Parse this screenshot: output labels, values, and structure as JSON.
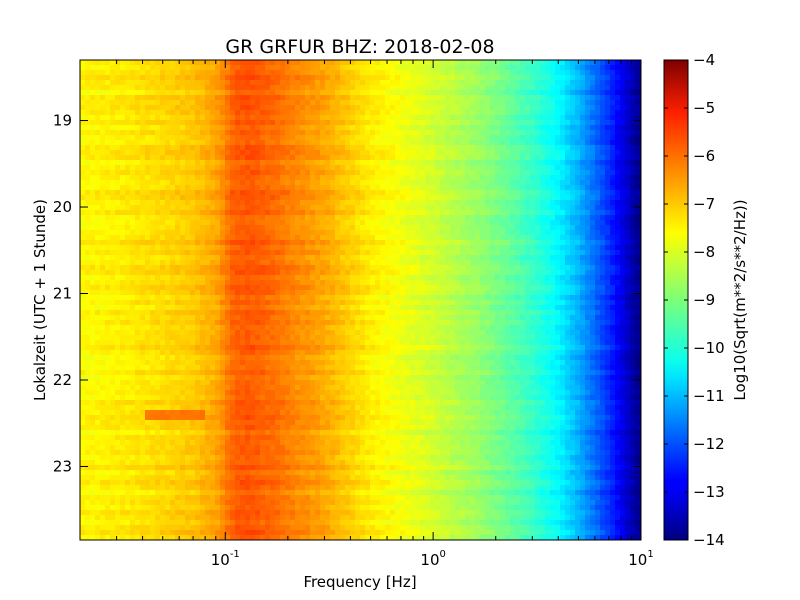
{
  "chart_data": {
    "type": "heatmap",
    "title": "GR GRFUR BHZ: 2018-02-08",
    "xlabel": "Frequency [Hz]",
    "ylabel": "Lokalzeit (UTC + 1 Stunde)",
    "x_scale": "log",
    "xlim": [
      0.02,
      10
    ],
    "ylim": [
      18.3,
      23.85
    ],
    "y_inverted": true,
    "x_ticks": [
      {
        "value": 0.1,
        "base": "10",
        "exponent": "-1"
      },
      {
        "value": 1,
        "base": "10",
        "exponent": "0"
      },
      {
        "value": 10,
        "base": "10",
        "exponent": "1"
      }
    ],
    "y_ticks": [
      {
        "value": 19,
        "label": "19"
      },
      {
        "value": 20,
        "label": "20"
      },
      {
        "value": 21,
        "label": "21"
      },
      {
        "value": 22,
        "label": "22"
      },
      {
        "value": 23,
        "label": "23"
      }
    ],
    "colorbar": {
      "label": "Log10(Sqrt(m**2/s**2/Hz))",
      "min": -14,
      "max": -4,
      "colormap": "jet",
      "ticks": [
        {
          "value": -4,
          "label": "−4"
        },
        {
          "value": -5,
          "label": "−5"
        },
        {
          "value": -6,
          "label": "−6"
        },
        {
          "value": -7,
          "label": "−7"
        },
        {
          "value": -8,
          "label": "−8"
        },
        {
          "value": -9,
          "label": "−9"
        },
        {
          "value": -10,
          "label": "−10"
        },
        {
          "value": -11,
          "label": "−11"
        },
        {
          "value": -12,
          "label": "−12"
        },
        {
          "value": -13,
          "label": "−13"
        },
        {
          "value": -14,
          "label": "−14"
        }
      ]
    },
    "spectrum_profile": {
      "frequency_hz": [
        0.02,
        0.03,
        0.05,
        0.07,
        0.09,
        0.11,
        0.13,
        0.17,
        0.22,
        0.3,
        0.4,
        0.5,
        0.65,
        0.8,
        1.0,
        1.3,
        1.7,
        2.2,
        3.0,
        4.0,
        5.0,
        6.0,
        7.0,
        8.0,
        9.0,
        10.0
      ],
      "log10_amplitude": [
        -7.7,
        -7.6,
        -7.4,
        -7.2,
        -6.9,
        -6.2,
        -6.1,
        -6.3,
        -6.6,
        -6.9,
        -7.3,
        -7.6,
        -7.8,
        -8.0,
        -8.2,
        -8.5,
        -8.8,
        -9.2,
        -9.7,
        -10.3,
        -11.0,
        -11.7,
        -12.3,
        -12.9,
        -13.5,
        -14.0
      ]
    },
    "anomalies": [
      {
        "time_start": 22.33,
        "time_end": 22.47,
        "freq_start": 0.04,
        "freq_end": 0.08,
        "log10_amplitude": -6.4
      }
    ]
  }
}
